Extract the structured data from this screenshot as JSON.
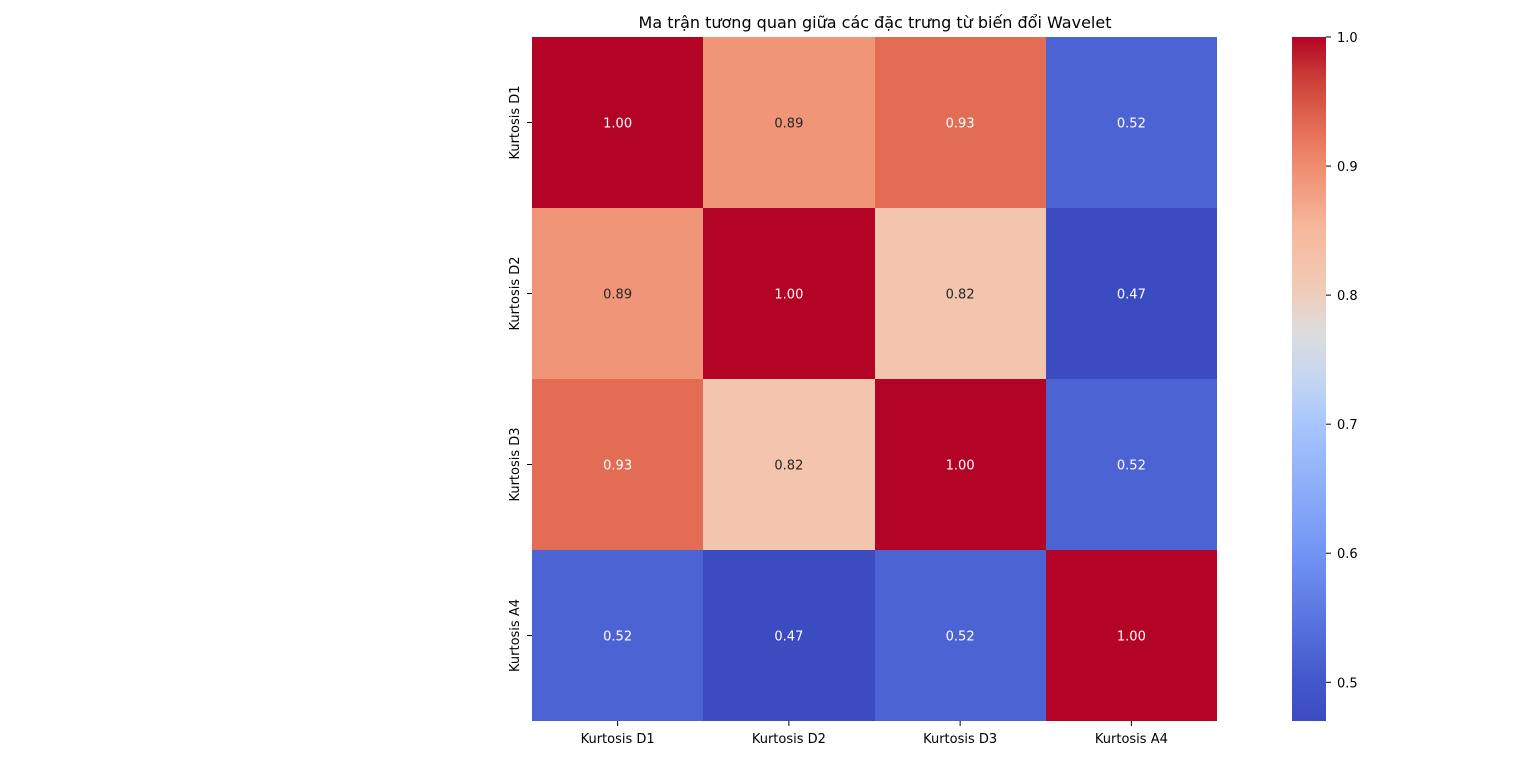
{
  "chart_data": {
    "type": "heatmap",
    "title": "Ma trận tương quan giữa các đặc trưng từ biến đổi Wavelet",
    "x_categories": [
      "Kurtosis D1",
      "Kurtosis D2",
      "Kurtosis D3",
      "Kurtosis A4"
    ],
    "y_categories": [
      "Kurtosis D1",
      "Kurtosis D2",
      "Kurtosis D3",
      "Kurtosis A4"
    ],
    "values": [
      [
        1.0,
        0.89,
        0.93,
        0.52
      ],
      [
        0.89,
        1.0,
        0.82,
        0.47
      ],
      [
        0.93,
        0.82,
        1.0,
        0.52
      ],
      [
        0.52,
        0.47,
        0.52,
        1.0
      ]
    ],
    "value_labels": [
      [
        "1.00",
        "0.89",
        "0.93",
        "0.52"
      ],
      [
        "0.89",
        "1.00",
        "0.82",
        "0.47"
      ],
      [
        "0.93",
        "0.82",
        "1.00",
        "0.52"
      ],
      [
        "0.52",
        "0.47",
        "0.52",
        "1.00"
      ]
    ],
    "colormap": "coolwarm",
    "vmin": 0.47,
    "vmax": 1.0,
    "colorbar_ticks": [
      0.5,
      0.6,
      0.7,
      0.8,
      0.9,
      1.0
    ],
    "colorbar_tick_labels": [
      "0.5",
      "0.6",
      "0.7",
      "0.8",
      "0.9",
      "1.0"
    ],
    "xlabel": "",
    "ylabel": ""
  }
}
